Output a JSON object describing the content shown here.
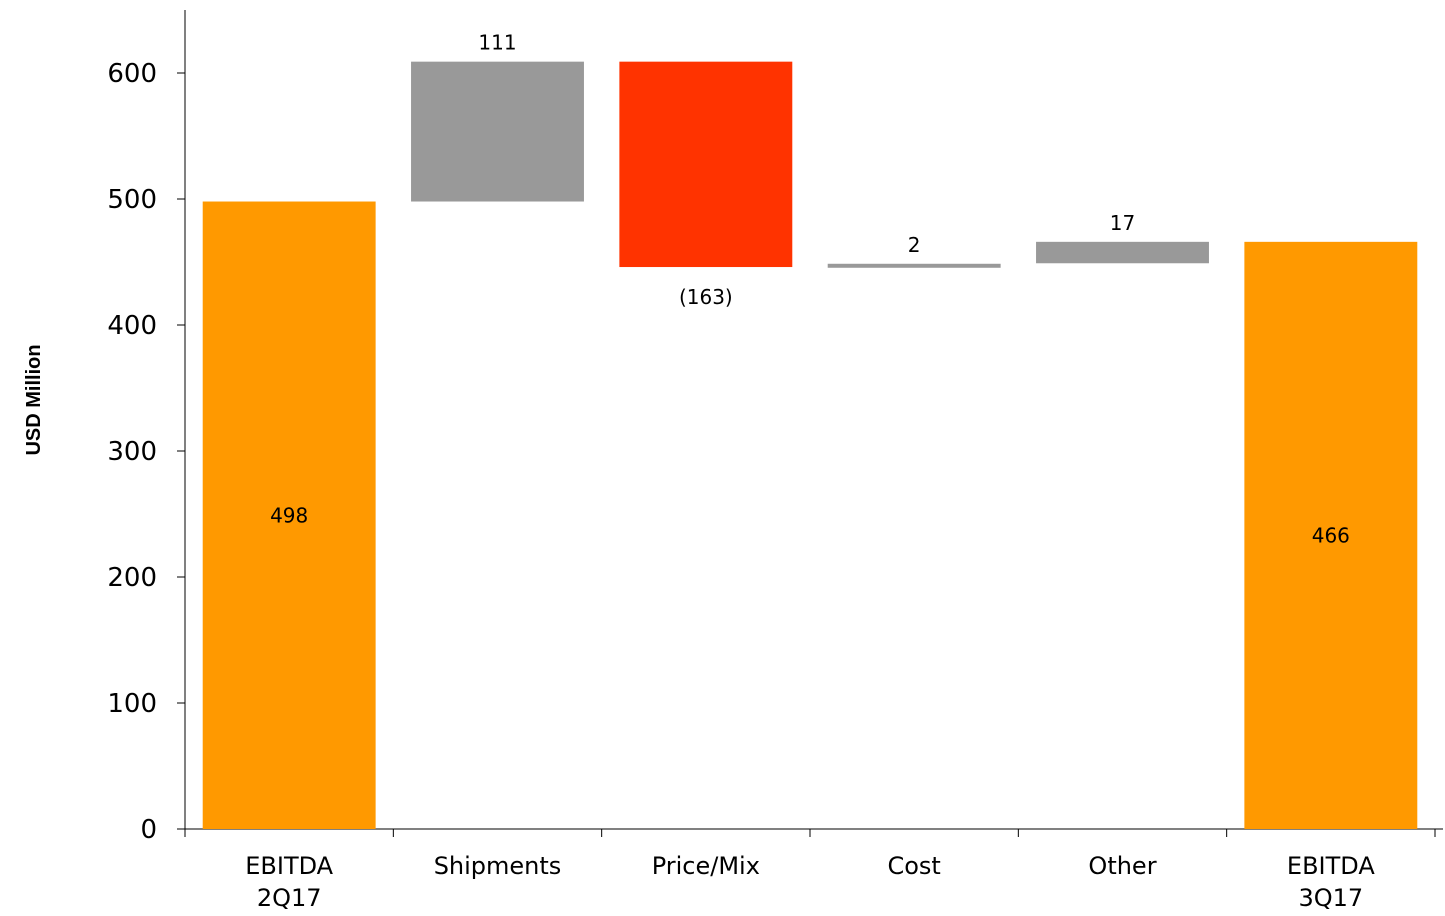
{
  "chart_data": {
    "type": "bar",
    "subtype": "waterfall",
    "ylabel": "USD Million",
    "ylim": [
      0,
      650
    ],
    "yticks": [
      0,
      100,
      200,
      300,
      400,
      500,
      600
    ],
    "grid": false,
    "legend": "none",
    "categories": [
      [
        "EBITDA",
        "2Q17"
      ],
      [
        "Shipments"
      ],
      [
        "Price/Mix"
      ],
      [
        "Cost"
      ],
      [
        "Other"
      ],
      [
        "EBITDA",
        "3Q17"
      ]
    ],
    "bars": [
      {
        "kind": "total",
        "start": 0,
        "end": 498,
        "label": "498",
        "label_pos": "inside",
        "color": "#FF9900"
      },
      {
        "kind": "delta",
        "start": 498,
        "end": 609,
        "label": "111",
        "label_pos": "above",
        "color": "#999999"
      },
      {
        "kind": "delta",
        "start": 609,
        "end": 446,
        "label": "(163)",
        "label_pos": "below",
        "color": "#FF3300"
      },
      {
        "kind": "delta",
        "start": 446,
        "end": 448,
        "label": "2",
        "label_pos": "above",
        "color": "#999999"
      },
      {
        "kind": "delta",
        "start": 449,
        "end": 466,
        "label": "17",
        "label_pos": "above",
        "color": "#999999"
      },
      {
        "kind": "total",
        "start": 0,
        "end": 466,
        "label": "466",
        "label_pos": "inside",
        "color": "#FF9900"
      }
    ]
  }
}
